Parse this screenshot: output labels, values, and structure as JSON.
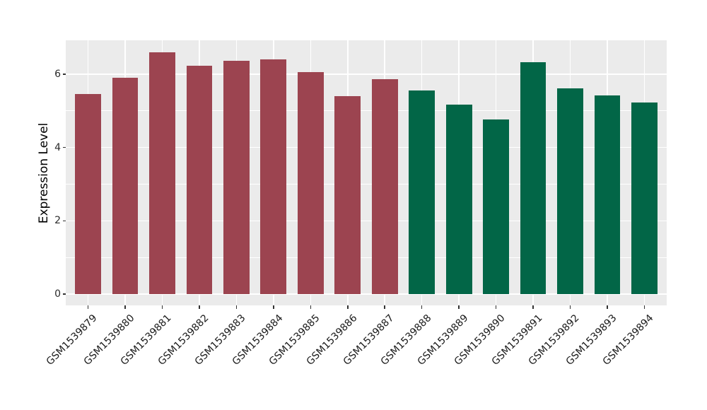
{
  "chart_data": {
    "type": "bar",
    "title": "",
    "xlabel": "",
    "ylabel": "Expression Level",
    "categories": [
      "GSM1539879",
      "GSM1539880",
      "GSM1539881",
      "GSM1539882",
      "GSM1539883",
      "GSM1539884",
      "GSM1539885",
      "GSM1539886",
      "GSM1539887",
      "GSM1539888",
      "GSM1539889",
      "GSM1539890",
      "GSM1539891",
      "GSM1539892",
      "GSM1539893",
      "GSM1539894"
    ],
    "values": [
      5.46,
      5.9,
      6.6,
      6.22,
      6.36,
      6.41,
      6.06,
      5.4,
      5.87,
      5.55,
      5.17,
      4.77,
      6.33,
      5.61,
      5.42,
      5.22
    ],
    "bar_colors": [
      "#9C4450",
      "#9C4450",
      "#9C4450",
      "#9C4450",
      "#9C4450",
      "#9C4450",
      "#9C4450",
      "#9C4450",
      "#9C4450",
      "#026647",
      "#026647",
      "#026647",
      "#026647",
      "#026647",
      "#026647",
      "#026647"
    ],
    "group_colors": {
      "red_group": "#9C4450",
      "green_group": "#026647"
    },
    "ylim": [
      -0.33,
      6.93
    ],
    "yticks": {
      "values": [
        0,
        2,
        4,
        6
      ],
      "labels": [
        "0",
        "2",
        "4",
        "6"
      ]
    },
    "yminor": [
      1,
      3,
      5
    ],
    "grid": true,
    "legend": false,
    "panel_background": "#EBEBEB",
    "gridline_color": "#ffffff"
  }
}
